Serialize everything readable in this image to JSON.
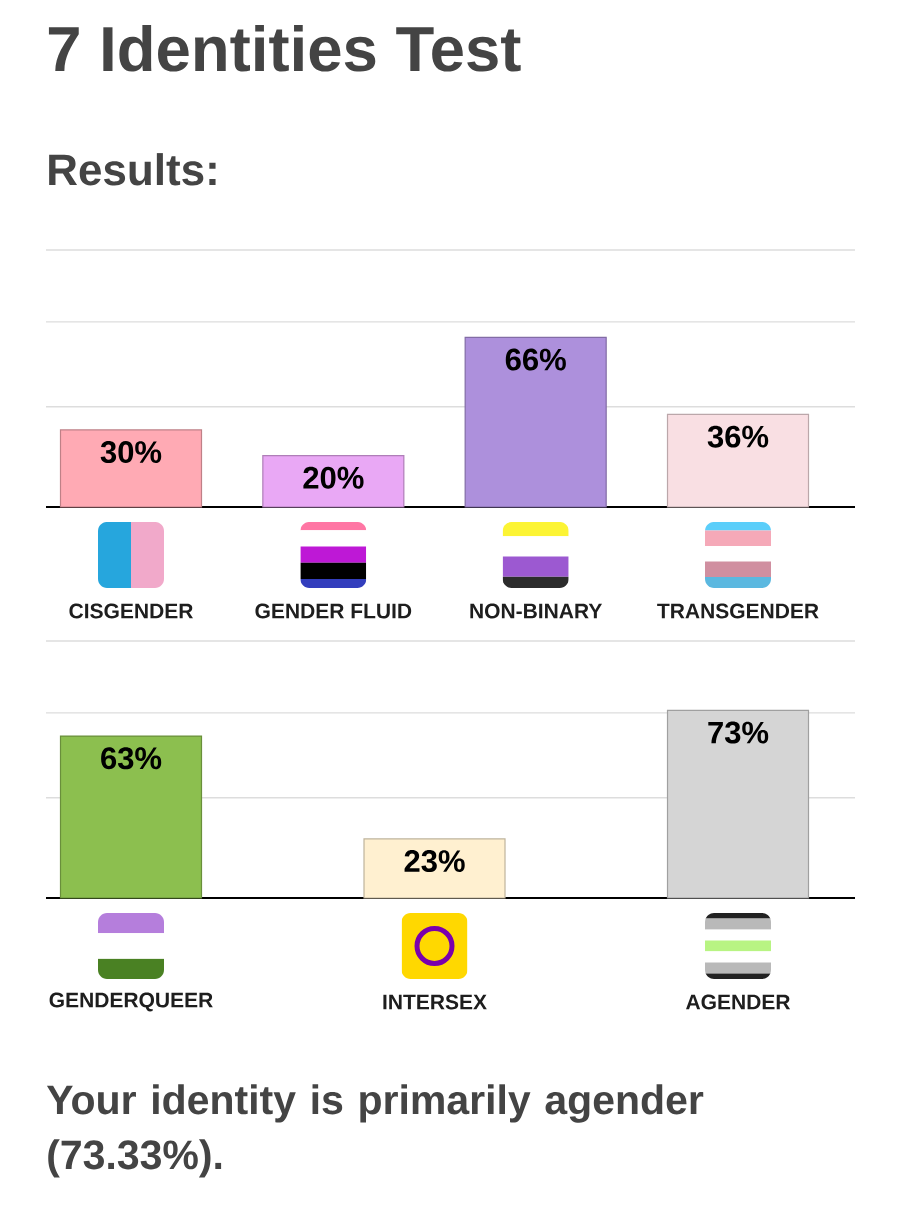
{
  "chart_data": [
    {
      "type": "bar",
      "title": "7 Identities Test",
      "subtitle": "Results:",
      "categories": [
        "CISGENDER",
        "GENDER FLUID",
        "NON-BINARY",
        "TRANSGENDER"
      ],
      "values": [
        30,
        20,
        66,
        36
      ],
      "value_labels": [
        "30%",
        "20%",
        "66%",
        "36%"
      ],
      "colors": [
        "#ffaab4",
        "#e9a8f5",
        "#ad90dc",
        "#f9dfe3"
      ],
      "ylim": [
        0,
        100
      ],
      "yticks": [
        {
          "value": 39,
          "label": null
        },
        {
          "value": 72,
          "label": null
        },
        {
          "value": 100,
          "label": null
        }
      ],
      "grid": "y"
    },
    {
      "type": "bar",
      "categories": [
        "GENDERQUEER",
        "INTERSEX",
        "AGENDER"
      ],
      "values": [
        63,
        23,
        73
      ],
      "value_labels": [
        "63%",
        "23%",
        "73%"
      ],
      "colors": [
        "#8cbf4f",
        "#fff0d0",
        "#d5d5d5"
      ],
      "ylim": [
        0,
        100
      ],
      "yticks": [
        {
          "value": 39,
          "label": null
        },
        {
          "value": 72,
          "label": null
        },
        {
          "value": 100,
          "label": null
        }
      ],
      "grid": "y",
      "annotations": [
        "Your identity is primarily agender (73.33%)."
      ]
    }
  ]
}
